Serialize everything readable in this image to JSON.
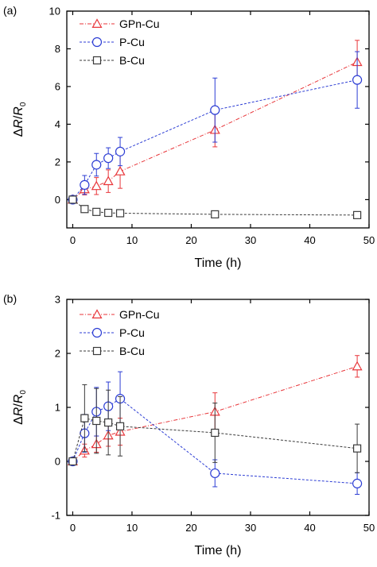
{
  "chart_data": [
    {
      "type": "line",
      "panel_label": "(a)",
      "xlabel": "Time (h)",
      "ylabel": "ΔR/R0",
      "ylabel_parts": {
        "delta": "Δ",
        "r": "R",
        "slash": "/",
        "r0": "R",
        "sub": "0"
      },
      "xlim": [
        -1,
        50
      ],
      "ylim": [
        -1.5,
        10
      ],
      "xticks": [
        0,
        10,
        20,
        30,
        40,
        50
      ],
      "yticks": [
        0,
        2,
        4,
        6,
        8,
        10
      ],
      "grid": false,
      "legend_position": "top-left",
      "series": [
        {
          "name": "GPn-Cu",
          "color": "#e8363a",
          "marker": "triangle",
          "dash": "dash-dot",
          "x": [
            0,
            2,
            4,
            6,
            8,
            24,
            48
          ],
          "y": [
            0,
            0.55,
            0.72,
            0.98,
            1.5,
            3.7,
            7.3
          ],
          "err": [
            0.08,
            0.3,
            0.45,
            0.6,
            0.9,
            0.9,
            1.15
          ]
        },
        {
          "name": "P-Cu",
          "color": "#2c3dd4",
          "marker": "circle",
          "dash": "dash",
          "x": [
            0,
            2,
            4,
            6,
            8,
            24,
            48
          ],
          "y": [
            0,
            0.78,
            1.85,
            2.2,
            2.55,
            4.75,
            6.35
          ],
          "err": [
            0.08,
            0.5,
            0.6,
            0.55,
            0.75,
            1.7,
            1.5
          ]
        },
        {
          "name": "B-Cu",
          "color": "#3a3a3a",
          "marker": "square",
          "dash": "dash",
          "x": [
            0,
            2,
            4,
            6,
            8,
            24,
            48
          ],
          "y": [
            0,
            -0.5,
            -0.65,
            -0.7,
            -0.72,
            -0.78,
            -0.82
          ],
          "err": [
            0.05,
            0.08,
            0.08,
            0.08,
            0.08,
            0.1,
            0.1
          ]
        }
      ]
    },
    {
      "type": "line",
      "panel_label": "(b)",
      "xlabel": "Time (h)",
      "ylabel": "ΔR/R0",
      "ylabel_parts": {
        "delta": "Δ",
        "r": "R",
        "slash": "/",
        "r0": "R",
        "sub": "0"
      },
      "xlim": [
        -1,
        50
      ],
      "ylim": [
        -1,
        3
      ],
      "xticks": [
        0,
        10,
        20,
        30,
        40,
        50
      ],
      "yticks": [
        -1,
        0,
        1,
        2,
        3
      ],
      "grid": false,
      "legend_position": "top-left",
      "series": [
        {
          "name": "GPn-Cu",
          "color": "#e8363a",
          "marker": "triangle",
          "dash": "dash-dot",
          "x": [
            0,
            2,
            4,
            6,
            8,
            24,
            48
          ],
          "y": [
            0,
            0.2,
            0.32,
            0.48,
            0.55,
            0.92,
            1.76
          ],
          "err": [
            0.03,
            0.12,
            0.15,
            0.2,
            0.25,
            0.35,
            0.2
          ]
        },
        {
          "name": "P-Cu",
          "color": "#2c3dd4",
          "marker": "circle",
          "dash": "dash",
          "x": [
            0,
            2,
            4,
            6,
            8,
            24,
            48
          ],
          "y": [
            0,
            0.52,
            0.92,
            1.02,
            1.16,
            -0.22,
            -0.41
          ],
          "err": [
            0.03,
            0.35,
            0.45,
            0.45,
            0.5,
            0.25,
            0.2
          ]
        },
        {
          "name": "B-Cu",
          "color": "#3a3a3a",
          "marker": "square",
          "dash": "dash",
          "x": [
            0,
            2,
            4,
            6,
            8,
            24,
            48
          ],
          "y": [
            0,
            0.8,
            0.75,
            0.72,
            0.65,
            0.53,
            0.24
          ],
          "err": [
            0.03,
            0.62,
            0.6,
            0.6,
            0.55,
            0.55,
            0.45
          ]
        }
      ]
    }
  ]
}
